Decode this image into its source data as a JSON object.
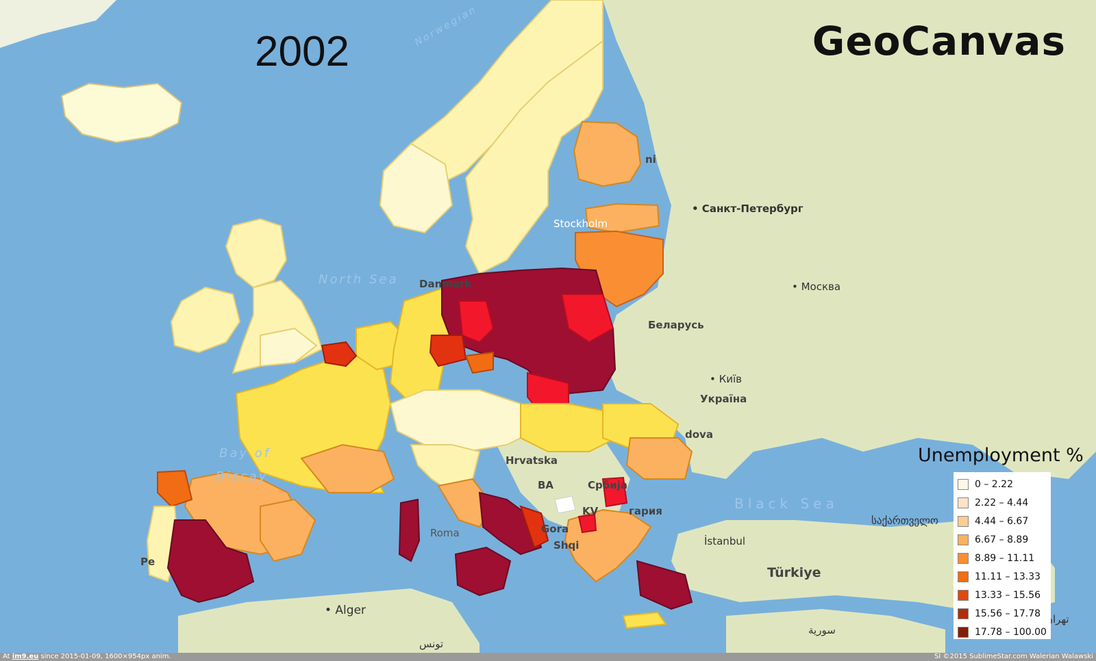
{
  "title": "2002",
  "brand": "GeoCanvas",
  "legend": {
    "title": "Unemployment %",
    "items": [
      {
        "label": "0 – 2.22",
        "color": "#fff7e6"
      },
      {
        "label": "2.22 – 4.44",
        "color": "#fde3c6"
      },
      {
        "label": "4.44 – 6.67",
        "color": "#fdcc94"
      },
      {
        "label": "6.67 – 8.89",
        "color": "#fbb15f"
      },
      {
        "label": "8.89 – 11.11",
        "color": "#f98f32"
      },
      {
        "label": "11.11 – 13.33",
        "color": "#f26c14"
      },
      {
        "label": "13.33 – 15.56",
        "color": "#dc4a10"
      },
      {
        "label": "15.56 – 17.78",
        "color": "#b02d0c"
      },
      {
        "label": "17.78 – 100.00",
        "color": "#821e0a"
      }
    ]
  },
  "places": {
    "norwegian": "Norwegian",
    "stpete": "• Санкт-Петербург",
    "moskva": "• Москва",
    "stockholm": "Stockholm",
    "northsea": "North Sea",
    "danmark": "Danmark",
    "belarus": "Беларусь",
    "kyiv": "• Київ",
    "ukraina": "Україна",
    "dova": "dova",
    "bay": "Bay of",
    "biscay": "Biscay",
    "hrvatska": "Hrvatska",
    "ba": "BA",
    "srbija": "Србија",
    "kv": "KV",
    "garia": "гария",
    "blacksea": "Black Sea",
    "georgia": "საქართველო",
    "istanbul": "İstanbul",
    "turkiye": "Türkiye",
    "roma": "Roma",
    "gora": "Gora",
    "shqi": "Shqi",
    "alger": "• Alger",
    "tunis": "تونس",
    "syria": "سورية",
    "tehran": "تهران",
    "pe": "Pe",
    "ni": "ni"
  },
  "footer": {
    "left_prefix": "At ",
    "left_site": "im9.eu",
    "left_rest": " since 2015-01-09, 1600×954px anim.",
    "right": "SI ©2015 SublimeStar.com Walerian Walawski"
  }
}
